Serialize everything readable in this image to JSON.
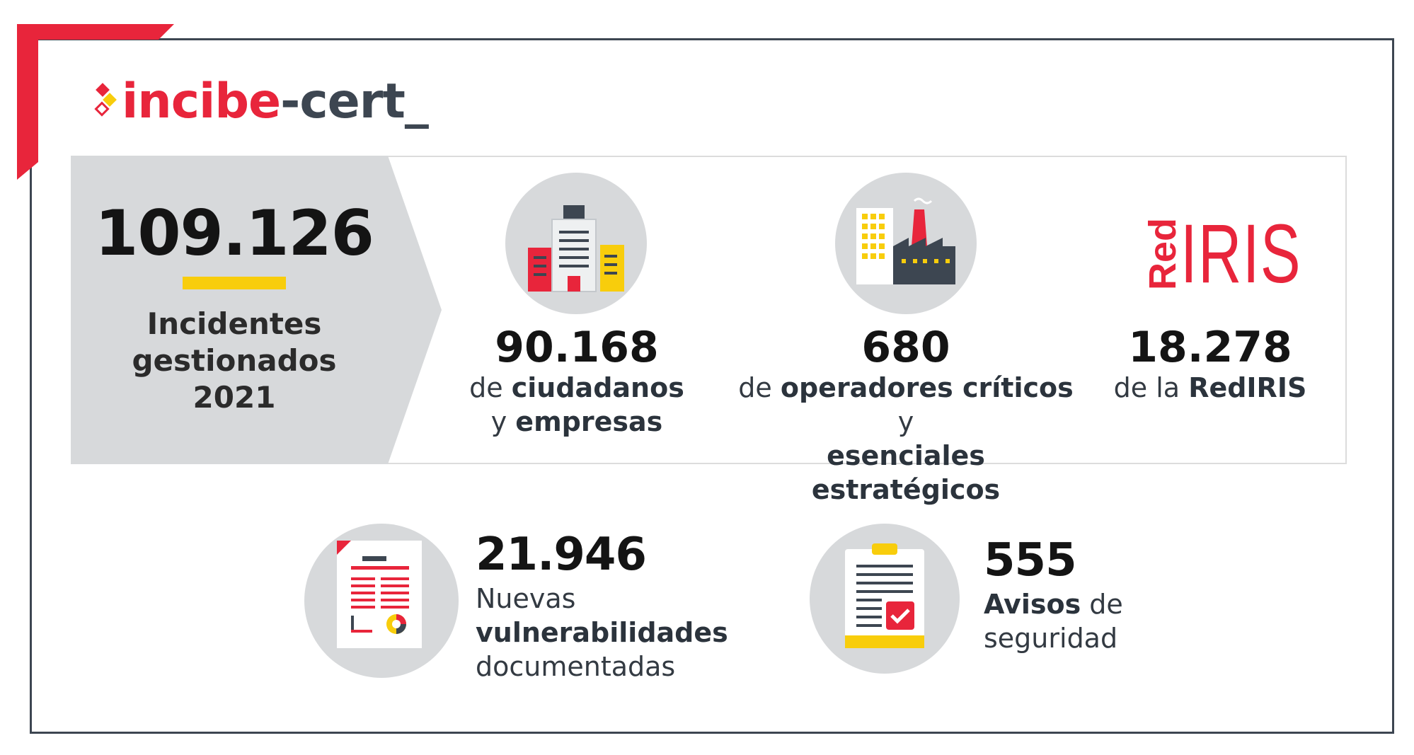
{
  "logo": {
    "part1": "incibe",
    "part2": "-cert_"
  },
  "total": {
    "value": "109.126",
    "label_line1": "Incidentes",
    "label_line2": "gestionados",
    "label_line3": "2021"
  },
  "citizens": {
    "value": "90.168",
    "prefix": "de ",
    "bold1": "ciudadanos",
    "line2_prefix": "y ",
    "bold2": "empresas"
  },
  "operators": {
    "value": "680",
    "prefix": "de ",
    "bold1": "operadores críticos",
    "suffix": " y",
    "bold2": "esenciales estratégicos"
  },
  "rediris": {
    "logo_small": "Red",
    "logo_big": "IRIS",
    "value": "18.278",
    "prefix": "de la ",
    "bold": "RedIRIS"
  },
  "vulns": {
    "value": "21.946",
    "line1": "Nuevas",
    "bold": "vulnerabilidades",
    "line3": "documentadas"
  },
  "alerts": {
    "value": "555",
    "bold": "Avisos",
    "suffix": " de",
    "line2": "seguridad"
  },
  "colors": {
    "red": "#e8253b",
    "dark": "#3d4651",
    "yellow": "#f8cd0c",
    "panel": "#d7d9db"
  }
}
